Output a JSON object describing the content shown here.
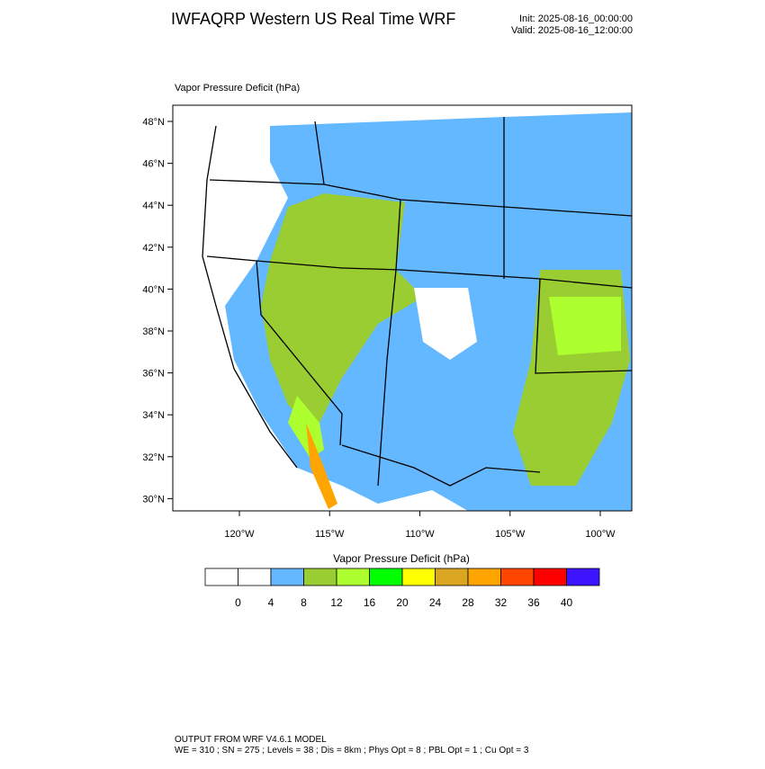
{
  "header": {
    "title": "IWFAQRP Western US Real Time WRF",
    "init": "Init: 2025-08-16_00:00:00",
    "valid": "Valid: 2025-08-16_12:00:00"
  },
  "map": {
    "label": "Vapor Pressure Deficit   (hPa)",
    "lat_ticks": [
      {
        "value": 48,
        "label": "48°N"
      },
      {
        "value": 46,
        "label": "46°N"
      },
      {
        "value": 44,
        "label": "44°N"
      },
      {
        "value": 42,
        "label": "42°N"
      },
      {
        "value": 40,
        "label": "40°N"
      },
      {
        "value": 38,
        "label": "38°N"
      },
      {
        "value": 36,
        "label": "36°N"
      },
      {
        "value": 34,
        "label": "34°N"
      },
      {
        "value": 32,
        "label": "32°N"
      },
      {
        "value": 30,
        "label": "30°N"
      }
    ],
    "lon_ticks": [
      {
        "value": -120,
        "label": "120°W"
      },
      {
        "value": -115,
        "label": "115°W"
      },
      {
        "value": -110,
        "label": "110°W"
      },
      {
        "value": -105,
        "label": "105°W"
      },
      {
        "value": -100,
        "label": "100°W"
      }
    ]
  },
  "colorbar": {
    "title": "Vapor Pressure Deficit  (hPa)",
    "levels": [
      0,
      4,
      8,
      12,
      16,
      20,
      24,
      28,
      32,
      36,
      40
    ],
    "colors": [
      "#ffffff",
      "#ffffff",
      "#63b8ff",
      "#9acd32",
      "#adff2f",
      "#00ff00",
      "#ffff00",
      "#daa520",
      "#ffa500",
      "#ff4500",
      "#ff0000",
      "#3c14ff"
    ]
  },
  "footer": {
    "line1": "OUTPUT FROM WRF V4.6.1 MODEL",
    "line2": "WE = 310 ; SN = 275 ; Levels = 38 ; Dis = 8km ; Phys Opt = 8 ; PBL Opt = 1 ; Cu Opt = 3"
  }
}
